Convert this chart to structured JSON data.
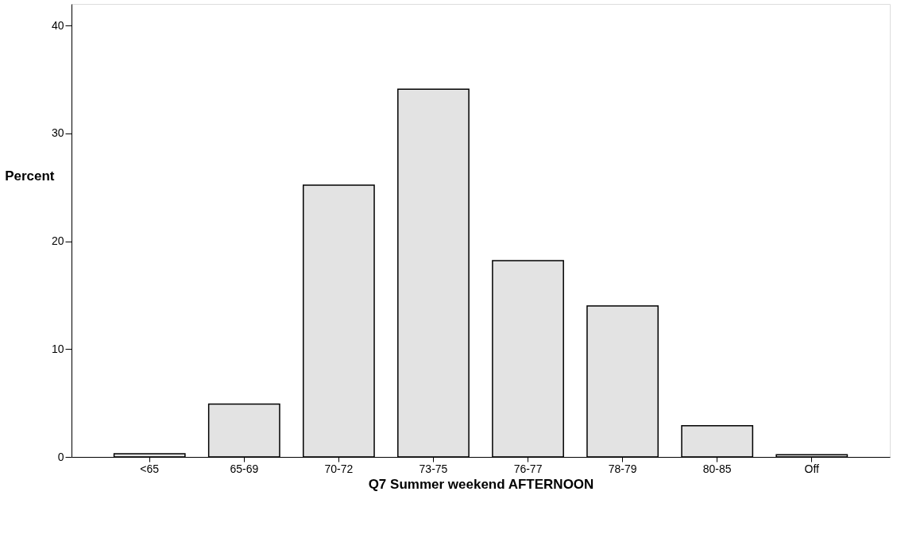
{
  "chart_data": {
    "type": "bar",
    "xlabel": "Q7 Summer weekend AFTERNOON",
    "ylabel": "Percent",
    "categories": [
      "<65",
      "65-69",
      "70-72",
      "73-75",
      "76-77",
      "78-79",
      "80-85",
      "Off"
    ],
    "values": [
      0.3,
      4.9,
      25.2,
      34.1,
      18.2,
      14.0,
      2.9,
      0.2
    ],
    "color": "#e3e3e3",
    "ylim": [
      0,
      42
    ],
    "yticks": [
      0,
      10,
      20,
      30,
      40
    ],
    "grid": false
  }
}
